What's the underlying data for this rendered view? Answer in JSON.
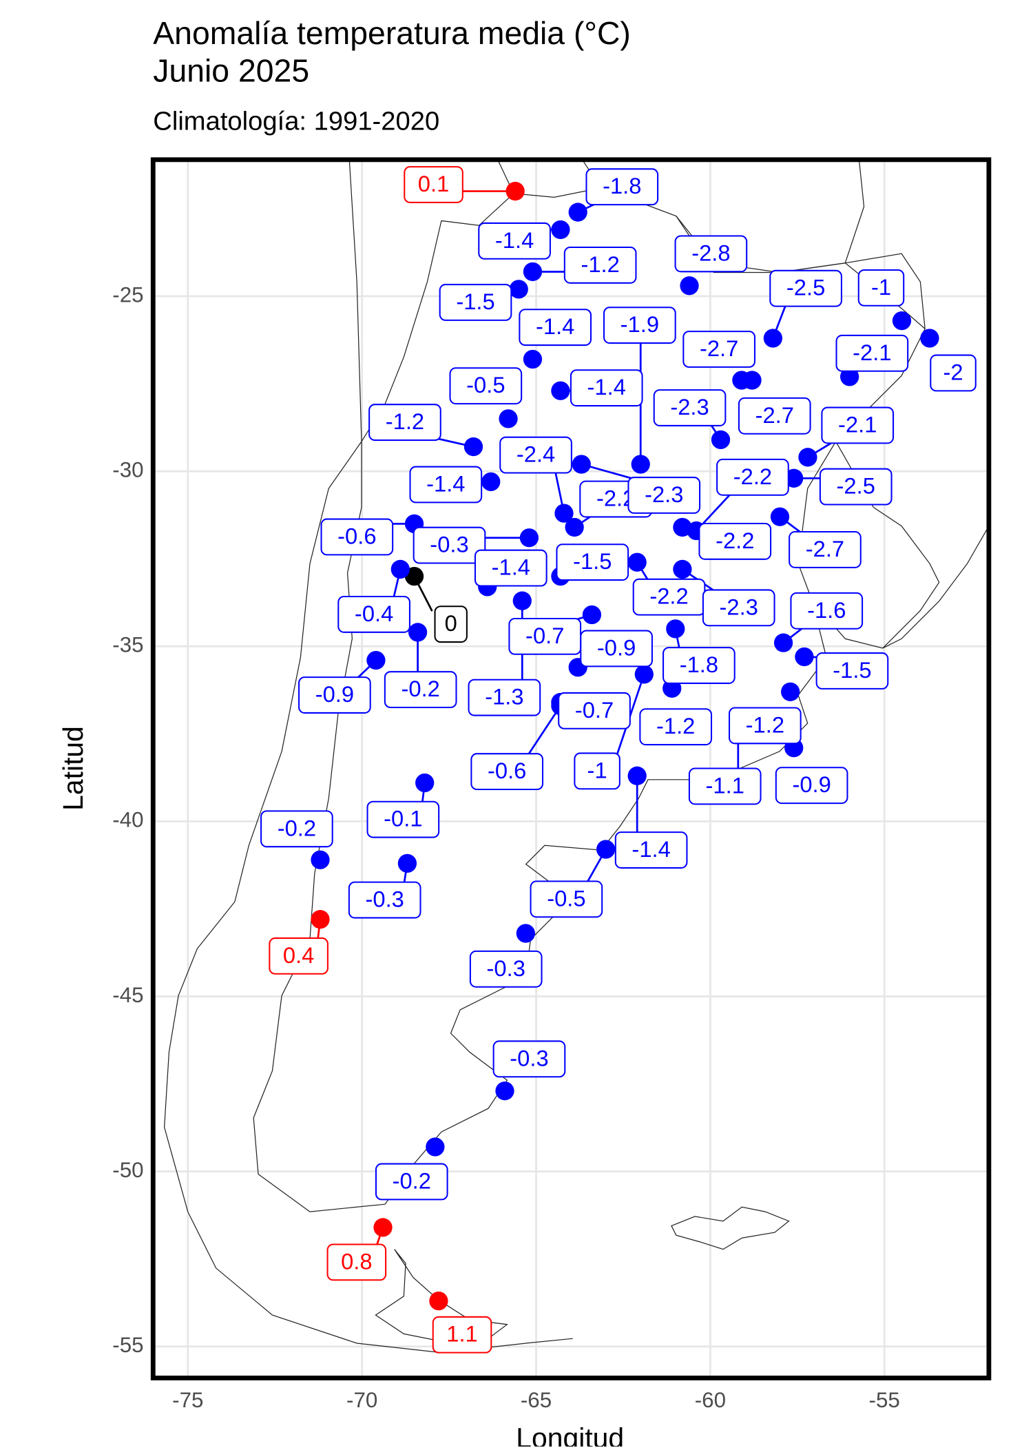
{
  "chart_data": {
    "type": "scatter",
    "title_lines": [
      "Anomalía temperatura media (°C)",
      "Junio 2025"
    ],
    "subtitle": "Climatología: 1991-2020",
    "x_label": "Longitud",
    "y_label": "Latitud",
    "xlim": [
      -76.0,
      -52.0
    ],
    "ylim": [
      -55.9,
      -21.1
    ],
    "xticks": [
      -75,
      -70,
      -65,
      -60,
      -55
    ],
    "yticks": [
      -55,
      -50,
      -45,
      -40,
      -35,
      -30,
      -25
    ],
    "grid": true,
    "point_colors": {
      "negative": "#0000ff",
      "zero": "#000000",
      "positive": "#ff0000"
    },
    "lon": [
      -65.6,
      -63.8,
      -64.3,
      -65.1,
      -65.5,
      -60.6,
      -58.2,
      -54.5,
      -53.7,
      -65.1,
      -62.0,
      -59.1,
      -58.8,
      -56.0,
      -64.3,
      -65.8,
      -59.7,
      -57.2,
      -66.8,
      -66.3,
      -64.2,
      -63.9,
      -63.7,
      -57.6,
      -58.0,
      -60.4,
      -60.8,
      -68.5,
      -65.2,
      -66.4,
      -64.3,
      -68.5,
      -68.9,
      -68.4,
      -69.6,
      -65.4,
      -63.4,
      -62.1,
      -60.8,
      -57.9,
      -57.3,
      -63.8,
      -61.0,
      -61.1,
      -64.3,
      -64.3,
      -61.9,
      -62.1,
      -63.0,
      -65.3,
      -57.7,
      -59.2,
      -57.6,
      -68.2,
      -71.2,
      -68.7,
      -71.2,
      -65.9,
      -67.9,
      -69.4,
      -67.8
    ],
    "lat": [
      -22.0,
      -22.6,
      -23.1,
      -24.3,
      -24.8,
      -24.7,
      -26.2,
      -25.7,
      -26.2,
      -26.8,
      -29.8,
      -27.4,
      -27.4,
      -27.3,
      -27.7,
      -28.5,
      -29.1,
      -29.6,
      -29.3,
      -30.3,
      -31.2,
      -31.6,
      -29.8,
      -30.2,
      -31.3,
      -31.7,
      -31.6,
      -31.5,
      -31.9,
      -33.3,
      -33.0,
      -33.0,
      -32.8,
      -34.6,
      -35.4,
      -33.7,
      -34.1,
      -32.6,
      -32.8,
      -34.9,
      -35.3,
      -35.6,
      -34.5,
      -36.2,
      -36.6,
      -36.7,
      -35.8,
      -38.7,
      -40.8,
      -43.2,
      -36.3,
      -37.2,
      -37.9,
      -38.9,
      -41.1,
      -41.2,
      -42.8,
      -47.7,
      -49.3,
      -51.6,
      -53.7
    ],
    "values": [
      0.1,
      -1.8,
      -1.4,
      -1.2,
      -1.5,
      -2.8,
      -2.5,
      -1,
      -2,
      -1.4,
      -1.9,
      -2.7,
      -2.7,
      -2.1,
      -1.4,
      -0.5,
      -2.3,
      -2.1,
      -1.2,
      -1.4,
      -2.4,
      -2.2,
      -2.3,
      -2.5,
      -2.7,
      -2.2,
      -2.2,
      -0.6,
      -0.3,
      -1.4,
      -1.5,
      0,
      -0.4,
      -0.2,
      -0.9,
      -1.3,
      -0.7,
      -2.2,
      -2.3,
      -1.6,
      -1.5,
      -0.9,
      -1.8,
      -1.2,
      -0.7,
      -0.6,
      -1,
      -1.4,
      -0.5,
      -0.3,
      -1.2,
      -1.1,
      -0.9,
      -0.1,
      -0.2,
      -0.3,
      0.4,
      -0.3,
      -0.2,
      0.8,
      1.1
    ]
  }
}
